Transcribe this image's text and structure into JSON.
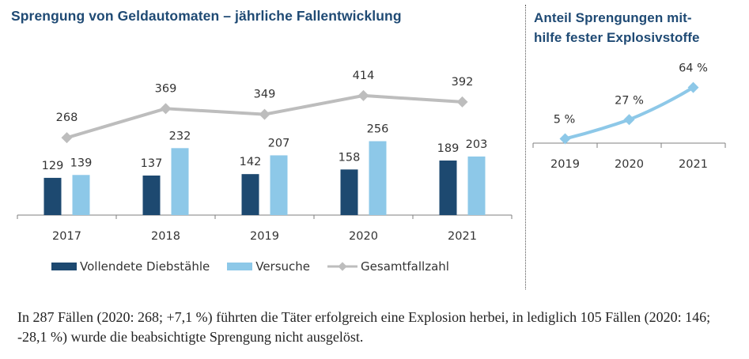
{
  "colors": {
    "title": "#1f4a74",
    "vollendete": "#1d4970",
    "versuche": "#8dc8e8",
    "gesamt": "#bdbdbd",
    "anteil": "#8dc8e8",
    "axis": "#7f7f7f"
  },
  "chart_data": [
    {
      "type": "bar",
      "title": "Sprengung von Geldautomaten – jährliche Fallentwicklung",
      "xlabel": "",
      "ylabel": "",
      "categories": [
        "2017",
        "2018",
        "2019",
        "2020",
        "2021"
      ],
      "series": [
        {
          "name": "Vollendete Diebstähle",
          "type": "bar",
          "values": [
            129,
            137,
            142,
            158,
            189
          ]
        },
        {
          "name": "Versuche",
          "type": "bar",
          "values": [
            139,
            232,
            207,
            256,
            203
          ]
        },
        {
          "name": "Gesamtfallzahl",
          "type": "line",
          "values": [
            268,
            369,
            349,
            414,
            392
          ]
        }
      ],
      "ylim": [
        0,
        450
      ],
      "grid": false,
      "legend": "bottom",
      "data_labels": true
    },
    {
      "type": "line",
      "title": "Anteil Sprengungen mithilfe fester Explosivstoffe",
      "xlabel": "",
      "ylabel": "",
      "categories": [
        "2019",
        "2020",
        "2021"
      ],
      "series": [
        {
          "name": "Anteil feste Explosivstoffe",
          "values": [
            5,
            27,
            64
          ],
          "unit": "%"
        }
      ],
      "labels": [
        "5 %",
        "27 %",
        "64 %"
      ],
      "ylim": [
        0,
        70
      ],
      "grid": false,
      "legend": "none"
    }
  ],
  "left_title": "Sprengung von Geldautomaten – jährliche Fallentwicklung",
  "right_title": "Anteil Sprengungen mit-hilfe fester Explosivstoffe",
  "right_title_lines": [
    "Anteil Sprengungen mit-",
    "hilfe fester Explosivstoffe"
  ],
  "legend": [
    {
      "label": "Vollendete Diebstähle"
    },
    {
      "label": "Versuche"
    },
    {
      "label": "Gesamtfallzahl"
    }
  ],
  "body_text": "In 287 Fällen (2020: 268; +7,1 %) führten die Täter erfolgreich eine Explosion herbei, in lediglich 105 Fällen (2020: 146; -28,1 %) wurde die beabsichtigte Sprengung nicht ausgelöst."
}
